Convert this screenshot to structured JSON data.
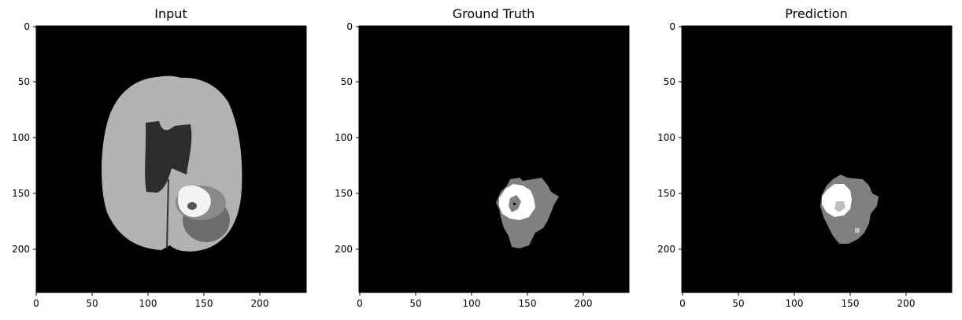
{
  "panels": [
    {
      "id": "input",
      "title": "Input",
      "x_ticks": [
        "0",
        "50",
        "100",
        "150",
        "200"
      ],
      "y_ticks": [
        "0",
        "50",
        "100",
        "150",
        "200"
      ]
    },
    {
      "id": "ground-truth",
      "title": "Ground Truth",
      "x_ticks": [
        "0",
        "50",
        "100",
        "150",
        "200"
      ],
      "y_ticks": [
        "0",
        "50",
        "100",
        "150",
        "200"
      ]
    },
    {
      "id": "prediction",
      "title": "Prediction",
      "x_ticks": [
        "0",
        "50",
        "100",
        "150",
        "200"
      ],
      "y_ticks": [
        "0",
        "50",
        "100",
        "150",
        "200"
      ]
    }
  ],
  "colors": {
    "background": "#000000",
    "tissue": "#bdbdbd",
    "ventricle": "#2e2e2e",
    "edema": "#7f7f7f",
    "tumor_core": "#ffffff"
  }
}
